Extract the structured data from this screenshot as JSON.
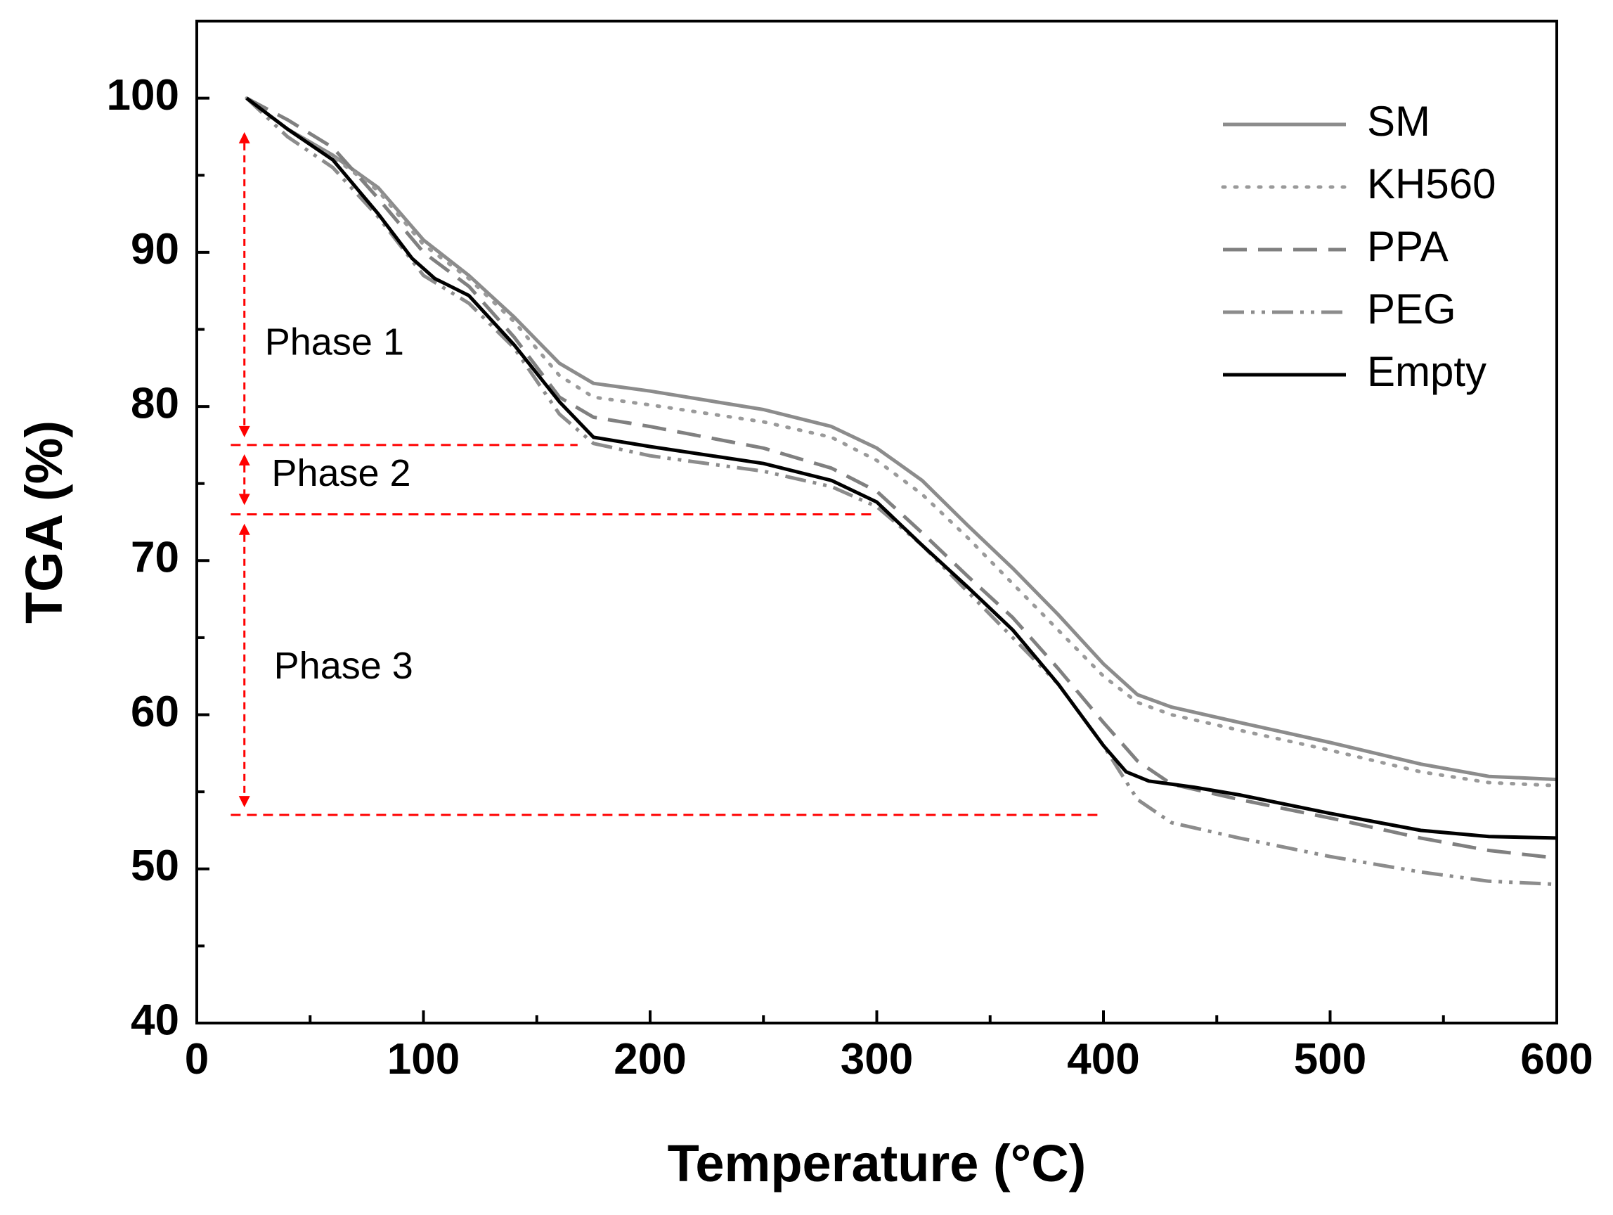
{
  "chart_data": {
    "type": "line",
    "title": "",
    "xlabel": "Temperature (°C)",
    "ylabel": "TGA (%)",
    "xlim": [
      0,
      600
    ],
    "ylim": [
      40,
      105
    ],
    "x_ticks": [
      0,
      100,
      200,
      300,
      400,
      500,
      600
    ],
    "y_ticks": [
      40,
      50,
      60,
      70,
      80,
      90,
      100
    ],
    "x_minor_step": 50,
    "y_minor_step": 5,
    "grid": false,
    "legend_position": "top-right",
    "series": [
      {
        "name": "SM",
        "color": "#8c8c8c",
        "dash": "solid",
        "points": [
          [
            22,
            100
          ],
          [
            40,
            98
          ],
          [
            60,
            96.3
          ],
          [
            80,
            94.2
          ],
          [
            100,
            90.8
          ],
          [
            120,
            88.5
          ],
          [
            140,
            85.8
          ],
          [
            160,
            82.8
          ],
          [
            175,
            81.5
          ],
          [
            200,
            81
          ],
          [
            250,
            79.8
          ],
          [
            280,
            78.7
          ],
          [
            300,
            77.3
          ],
          [
            320,
            75.2
          ],
          [
            340,
            72.3
          ],
          [
            360,
            69.5
          ],
          [
            380,
            66.5
          ],
          [
            400,
            63.3
          ],
          [
            415,
            61.3
          ],
          [
            430,
            60.5
          ],
          [
            460,
            59.5
          ],
          [
            500,
            58.2
          ],
          [
            540,
            56.8
          ],
          [
            570,
            56
          ],
          [
            600,
            55.8
          ]
        ]
      },
      {
        "name": "KH560",
        "color": "#9a9a9a",
        "dash": "dotted",
        "points": [
          [
            22,
            100
          ],
          [
            40,
            98
          ],
          [
            60,
            96.2
          ],
          [
            80,
            94
          ],
          [
            100,
            90.5
          ],
          [
            120,
            88.3
          ],
          [
            140,
            85.5
          ],
          [
            160,
            82
          ],
          [
            175,
            80.6
          ],
          [
            200,
            80.1
          ],
          [
            250,
            79
          ],
          [
            280,
            78
          ],
          [
            300,
            76.5
          ],
          [
            320,
            74.3
          ],
          [
            340,
            71.5
          ],
          [
            360,
            68.5
          ],
          [
            380,
            65.5
          ],
          [
            400,
            62.5
          ],
          [
            415,
            60.8
          ],
          [
            430,
            60
          ],
          [
            460,
            59
          ],
          [
            500,
            57.7
          ],
          [
            540,
            56.3
          ],
          [
            570,
            55.6
          ],
          [
            600,
            55.4
          ]
        ]
      },
      {
        "name": "PPA",
        "color": "#808080",
        "dash": "dashed",
        "points": [
          [
            22,
            100
          ],
          [
            40,
            98.6
          ],
          [
            60,
            96.8
          ],
          [
            80,
            93.5
          ],
          [
            100,
            90
          ],
          [
            120,
            87.8
          ],
          [
            140,
            84.5
          ],
          [
            160,
            80.6
          ],
          [
            175,
            79.3
          ],
          [
            200,
            78.7
          ],
          [
            250,
            77.3
          ],
          [
            280,
            76
          ],
          [
            300,
            74.5
          ],
          [
            320,
            71.8
          ],
          [
            340,
            69
          ],
          [
            360,
            66.3
          ],
          [
            380,
            63
          ],
          [
            400,
            59.5
          ],
          [
            415,
            57
          ],
          [
            430,
            55.5
          ],
          [
            460,
            54.5
          ],
          [
            500,
            53.3
          ],
          [
            540,
            52
          ],
          [
            570,
            51.2
          ],
          [
            600,
            50.7
          ]
        ]
      },
      {
        "name": "PEG",
        "color": "#8c8c8c",
        "dash": "dashdotdot",
        "points": [
          [
            22,
            100
          ],
          [
            40,
            97.5
          ],
          [
            60,
            95.5
          ],
          [
            80,
            92.3
          ],
          [
            100,
            88.5
          ],
          [
            120,
            86.7
          ],
          [
            140,
            83.8
          ],
          [
            160,
            79.5
          ],
          [
            175,
            77.6
          ],
          [
            200,
            76.8
          ],
          [
            250,
            75.8
          ],
          [
            280,
            74.8
          ],
          [
            300,
            73.5
          ],
          [
            320,
            71
          ],
          [
            340,
            68
          ],
          [
            360,
            65
          ],
          [
            380,
            62
          ],
          [
            400,
            58
          ],
          [
            415,
            54.5
          ],
          [
            430,
            53
          ],
          [
            460,
            52
          ],
          [
            500,
            50.8
          ],
          [
            540,
            49.8
          ],
          [
            570,
            49.2
          ],
          [
            600,
            49
          ]
        ]
      },
      {
        "name": "Empty",
        "color": "#000000",
        "dash": "solid",
        "points": [
          [
            22,
            100
          ],
          [
            40,
            98
          ],
          [
            60,
            96
          ],
          [
            80,
            92.5
          ],
          [
            95,
            89.6
          ],
          [
            105,
            88.3
          ],
          [
            120,
            87.2
          ],
          [
            140,
            84
          ],
          [
            160,
            80.3
          ],
          [
            175,
            78
          ],
          [
            200,
            77.4
          ],
          [
            250,
            76.3
          ],
          [
            280,
            75.2
          ],
          [
            300,
            73.8
          ],
          [
            320,
            71
          ],
          [
            340,
            68.3
          ],
          [
            360,
            65.5
          ],
          [
            380,
            62
          ],
          [
            400,
            58
          ],
          [
            410,
            56.3
          ],
          [
            420,
            55.7
          ],
          [
            440,
            55.3
          ],
          [
            460,
            54.8
          ],
          [
            500,
            53.6
          ],
          [
            540,
            52.5
          ],
          [
            570,
            52.1
          ],
          [
            600,
            52
          ]
        ]
      }
    ],
    "annotations": {
      "color": "#ff0000",
      "phase_labels": [
        {
          "text": "Phase 1",
          "x": 30,
          "y": 84
        },
        {
          "text": "Phase 2",
          "x": 33,
          "y": 75.5
        },
        {
          "text": "Phase 3",
          "x": 34,
          "y": 63
        }
      ],
      "guide_lines": [
        {
          "x_start": 15,
          "x_end": 168,
          "y": 77.5
        },
        {
          "x_start": 15,
          "x_end": 300,
          "y": 73
        },
        {
          "x_start": 15,
          "x_end": 400,
          "y": 53.5
        }
      ],
      "arrows": [
        {
          "x": 21,
          "y_from": 97.8,
          "y_to": 78
        },
        {
          "x": 21,
          "y_from": 76.9,
          "y_to": 73.6
        },
        {
          "x": 21,
          "y_from": 72.4,
          "y_to": 54
        }
      ]
    }
  }
}
